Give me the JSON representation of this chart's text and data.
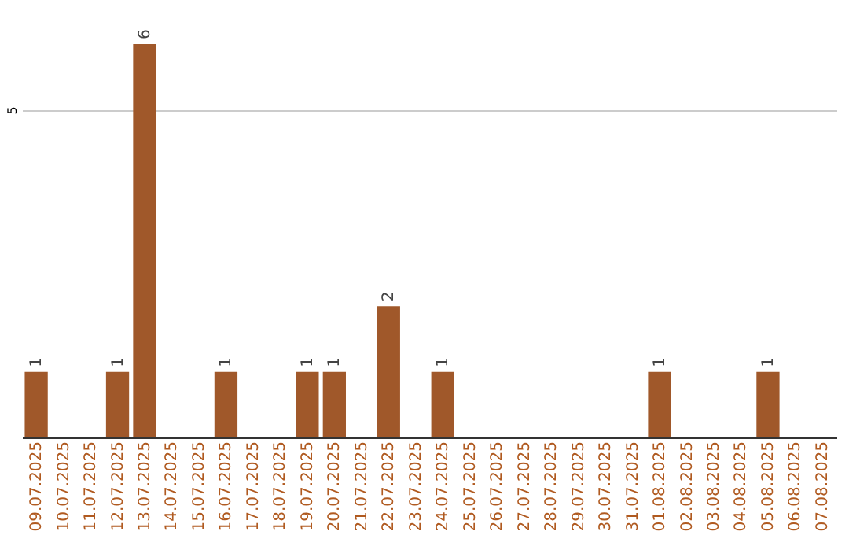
{
  "chart_data": {
    "type": "bar",
    "categories": [
      "09.07.2025",
      "10.07.2025",
      "11.07.2025",
      "12.07.2025",
      "13.07.2025",
      "14.07.2025",
      "15.07.2025",
      "16.07.2025",
      "17.07.2025",
      "18.07.2025",
      "19.07.2025",
      "20.07.2025",
      "21.07.2025",
      "22.07.2025",
      "23.07.2025",
      "24.07.2025",
      "25.07.2025",
      "26.07.2025",
      "27.07.2025",
      "28.07.2025",
      "29.07.2025",
      "30.07.2025",
      "31.07.2025",
      "01.08.2025",
      "02.08.2025",
      "03.08.2025",
      "04.08.2025",
      "05.08.2025",
      "06.08.2025",
      "07.08.2025"
    ],
    "values": [
      1,
      0,
      0,
      1,
      6,
      0,
      0,
      1,
      0,
      0,
      1,
      1,
      0,
      2,
      0,
      1,
      0,
      0,
      0,
      0,
      0,
      0,
      0,
      1,
      0,
      0,
      0,
      1,
      0,
      0
    ],
    "value_labels": [
      "1",
      null,
      null,
      "1",
      "6",
      null,
      null,
      "1",
      null,
      null,
      "1",
      "1",
      null,
      "2",
      null,
      "1",
      null,
      null,
      null,
      null,
      null,
      null,
      null,
      "1",
      null,
      null,
      null,
      "1",
      null,
      null
    ],
    "color": "#a0582a",
    "ylim": [
      0,
      6
    ],
    "yticks": [
      5
    ],
    "grid": "y"
  }
}
